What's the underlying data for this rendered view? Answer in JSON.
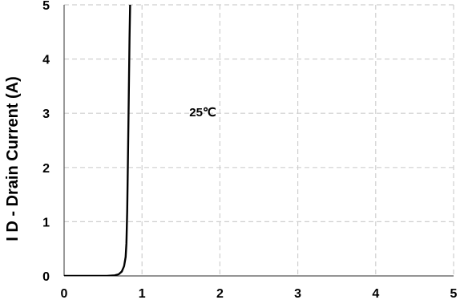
{
  "chart_data": {
    "type": "line",
    "title": "",
    "xlabel": "",
    "ylabel": "I D - Drain Current (A)",
    "xlim": [
      0,
      5
    ],
    "ylim": [
      0,
      5
    ],
    "xticks": [
      "0",
      "1",
      "2",
      "3",
      "4",
      "5"
    ],
    "yticks": [
      "0",
      "1",
      "2",
      "3",
      "4",
      "5"
    ],
    "grid": true,
    "annotation": {
      "text": "25℃",
      "x": 1.78,
      "y": 3.0
    },
    "series": [
      {
        "name": "",
        "color": "#000000",
        "x": [
          0.0,
          0.2,
          0.4,
          0.55,
          0.65,
          0.7,
          0.74,
          0.77,
          0.79,
          0.8,
          0.81,
          0.82,
          0.83,
          0.84,
          0.85
        ],
        "y": [
          0.0,
          0.0,
          0.0,
          0.0,
          0.01,
          0.03,
          0.08,
          0.18,
          0.35,
          0.6,
          1.2,
          2.2,
          3.3,
          4.4,
          5.2
        ]
      }
    ]
  }
}
